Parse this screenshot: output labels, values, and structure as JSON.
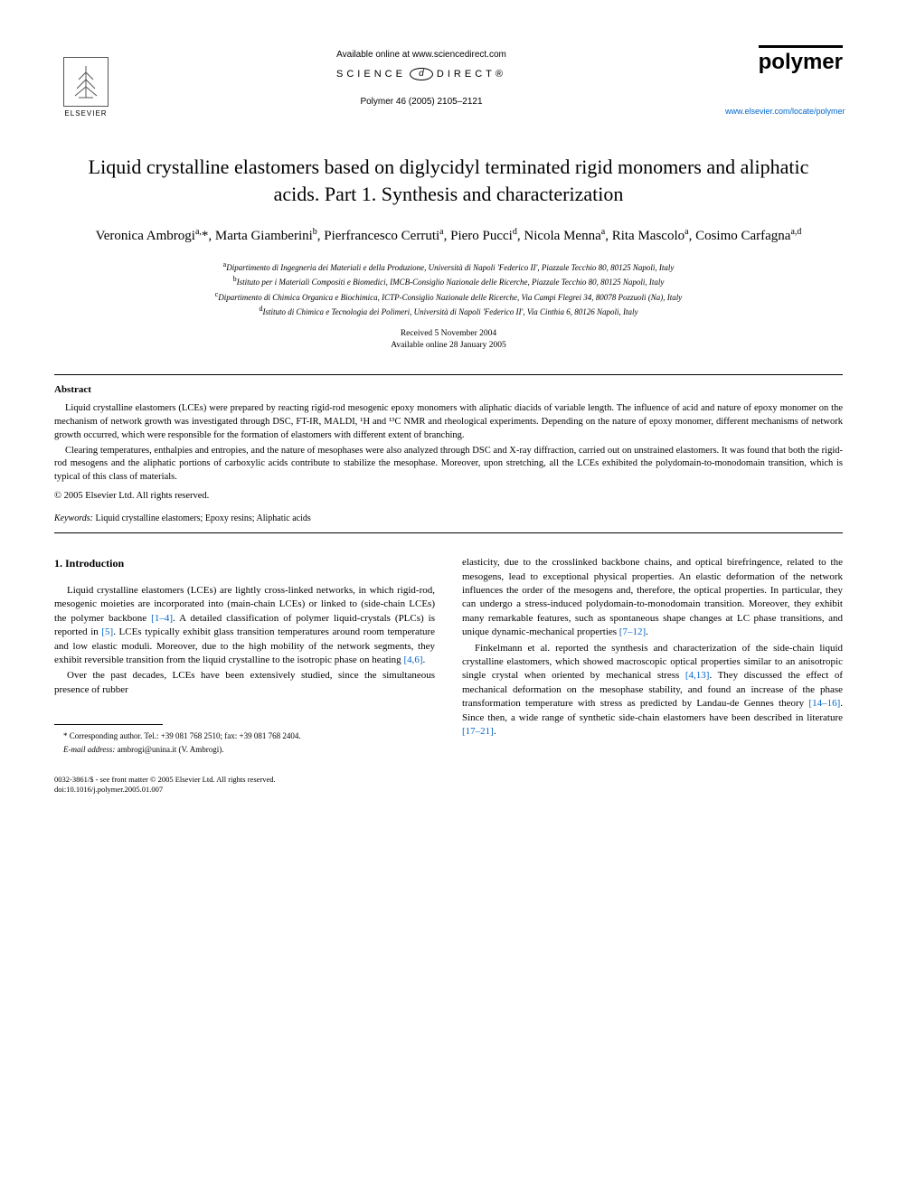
{
  "header": {
    "available_online": "Available online at www.sciencedirect.com",
    "sciencedirect_left": "SCIENCE",
    "sciencedirect_mid": "d",
    "sciencedirect_right": "DIRECT®",
    "citation": "Polymer 46 (2005) 2105–2121",
    "elsevier_label": "ELSEVIER",
    "polymer_label": "polymer",
    "journal_url": "www.elsevier.com/locate/polymer"
  },
  "title": "Liquid crystalline elastomers based on diglycidyl terminated rigid monomers and aliphatic acids. Part 1. Synthesis and characterization",
  "authors_html": "Veronica Ambrogi<sup>a,</sup>*, Marta Giamberini<sup>b</sup>, Pierfrancesco Cerruti<sup>a</sup>, Piero Pucci<sup>d</sup>, Nicola Menna<sup>a</sup>, Rita Mascolo<sup>a</sup>, Cosimo Carfagna<sup>a,d</sup>",
  "affiliations": {
    "a": "Dipartimento di Ingegneria dei Materiali e della Produzione, Università di Napoli 'Federico II', Piazzale Tecchio 80, 80125 Napoli, Italy",
    "b": "Istituto per i Materiali Compositi e Biomedici, IMCB-Consiglio Nazionale delle Ricerche, Piazzale Tecchio 80, 80125 Napoli, Italy",
    "c": "Dipartimento di Chimica Organica e Biochimica, ICTP-Consiglio Nazionale delle Ricerche, Via Campi Flegrei 34, 80078 Pozzuoli (Na), Italy",
    "d": "Istituto di Chimica e Tecnologia dei Polimeri, Università di Napoli 'Federico II', Via Cinthia 6, 80126 Napoli, Italy"
  },
  "dates": {
    "received": "Received 5 November 2004",
    "online": "Available online 28 January 2005"
  },
  "abstract": {
    "heading": "Abstract",
    "p1": "Liquid crystalline elastomers (LCEs) were prepared by reacting rigid-rod mesogenic epoxy monomers with aliphatic diacids of variable length. The influence of acid and nature of epoxy monomer on the mechanism of network growth was investigated through DSC, FT-IR, MALDI, ¹H and ¹³C NMR and rheological experiments. Depending on the nature of epoxy monomer, different mechanisms of network growth occurred, which were responsible for the formation of elastomers with different extent of branching.",
    "p2": "Clearing temperatures, enthalpies and entropies, and the nature of mesophases were also analyzed through DSC and X-ray diffraction, carried out on unstrained elastomers. It was found that both the rigid-rod mesogens and the aliphatic portions of carboxylic acids contribute to stabilize the mesophase. Moreover, upon stretching, all the LCEs exhibited the polydomain-to-monodomain transition, which is typical of this class of materials.",
    "copyright": "© 2005 Elsevier Ltd. All rights reserved."
  },
  "keywords": {
    "label": "Keywords:",
    "text": " Liquid crystalline elastomers; Epoxy resins; Aliphatic acids"
  },
  "body": {
    "section_heading": "1. Introduction",
    "left_p1_a": "Liquid crystalline elastomers (LCEs) are lightly cross-linked networks, in which rigid-rod, mesogenic moieties are incorporated into (main-chain LCEs) or linked to (side-chain LCEs) the polymer backbone ",
    "left_p1_ref1": "[1–4]",
    "left_p1_b": ". A detailed classification of polymer liquid-crystals (PLCs) is reported in ",
    "left_p1_ref2": "[5]",
    "left_p1_c": ". LCEs typically exhibit glass transition temperatures around room temperature and low elastic moduli. Moreover, due to the high mobility of the network segments, they exhibit reversible transition from the liquid crystalline to the isotropic phase on heating ",
    "left_p1_ref3": "[4,6]",
    "left_p1_d": ".",
    "left_p2": "Over the past decades, LCEs have been extensively studied, since the simultaneous presence of rubber",
    "right_p1_a": "elasticity, due to the crosslinked backbone chains, and optical birefringence, related to the mesogens, lead to exceptional physical properties. An elastic deformation of the network influences the order of the mesogens and, therefore, the optical properties. In particular, they can undergo a stress-induced polydomain-to-monodomain transition. Moreover, they exhibit many remarkable features, such as spontaneous shape changes at LC phase transitions, and unique dynamic-mechanical properties ",
    "right_p1_ref1": "[7–12]",
    "right_p1_b": ".",
    "right_p2_a": "Finkelmann et al. reported the synthesis and characterization of the side-chain liquid crystalline elastomers, which showed macroscopic optical properties similar to an anisotropic single crystal when oriented by mechanical stress ",
    "right_p2_ref1": "[4,13]",
    "right_p2_b": ". They discussed the effect of mechanical deformation on the mesophase stability, and found an increase of the phase transformation temperature with stress as predicted by Landau-de Gennes theory ",
    "right_p2_ref2": "[14–16]",
    "right_p2_c": ". Since then, a wide range of synthetic side-chain elastomers have been described in literature ",
    "right_p2_ref3": "[17–21]",
    "right_p2_d": "."
  },
  "footnotes": {
    "corresponding": "* Corresponding author. Tel.: +39 081 768 2510; fax: +39 081 768 2404.",
    "email_label": "E-mail address:",
    "email": " ambrogi@unina.it (V. Ambrogi)."
  },
  "footer": {
    "line1": "0032-3861/$ - see front matter © 2005 Elsevier Ltd. All rights reserved.",
    "line2": "doi:10.1016/j.polymer.2005.01.007"
  },
  "colors": {
    "link": "#0066cc",
    "text": "#000000",
    "background": "#ffffff"
  }
}
